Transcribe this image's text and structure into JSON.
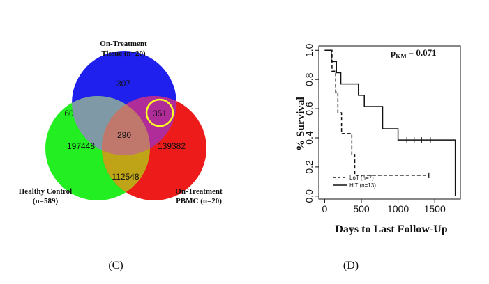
{
  "chart_data": [
    {
      "type": "venn",
      "panel_label": "(C)",
      "sets": [
        {
          "name_line1": "On-Treatment",
          "name_line2": "Tissue (n=20)",
          "color": "#2020ee"
        },
        {
          "name_line1": "Healthy Control",
          "name_line2": "(n=589)",
          "color": "#22ee22"
        },
        {
          "name_line1": "On-Treatment",
          "name_line2": "PBMC (n=20)",
          "color": "#ee1b1b"
        }
      ],
      "regions": {
        "tissue_only": "307",
        "tissue_healthy": "60",
        "tissue_pbmc": "351",
        "all_three": "290",
        "healthy_only": "197448",
        "pbmc_only": "139382",
        "healthy_pbmc": "112548"
      },
      "highlight_region": "tissue_pbmc",
      "highlight_color": "#ffff22"
    },
    {
      "type": "line",
      "subtype": "kaplan-meier step",
      "panel_label": "(D)",
      "xlabel": "Days to Last Follow-Up",
      "ylabel": "% Survival",
      "annotation_main": "p",
      "annotation_sub": "KM",
      "annotation_value": "= 0.071",
      "xlim": [
        -80,
        1850
      ],
      "ylim": [
        -0.02,
        1.03
      ],
      "xticks": [
        0,
        500,
        1000,
        1500
      ],
      "yticks": [
        "0.0",
        "0.2",
        "0.4",
        "0.6",
        "0.8",
        "1.0"
      ],
      "ytick_values": [
        0,
        0.2,
        0.4,
        0.6,
        0.8,
        1.0
      ],
      "series": [
        {
          "name": "LoT (n=7)",
          "style": "dashed",
          "steps": [
            [
              0,
              1.0
            ],
            [
              100,
              0.857
            ],
            [
              150,
              0.714
            ],
            [
              180,
              0.571
            ],
            [
              230,
              0.429
            ],
            [
              370,
              0.286
            ],
            [
              410,
              0.143
            ],
            [
              1420,
              0.143
            ]
          ],
          "censored": [
            [
              1420,
              0.143
            ]
          ]
        },
        {
          "name": "HiT (n=13)",
          "style": "solid",
          "steps": [
            [
              0,
              1.0
            ],
            [
              90,
              0.923
            ],
            [
              160,
              0.846
            ],
            [
              220,
              0.769
            ],
            [
              460,
              0.692
            ],
            [
              540,
              0.615
            ],
            [
              790,
              0.462
            ],
            [
              1000,
              0.385
            ],
            [
              1780,
              0.385
            ],
            [
              1780,
              0.0
            ]
          ],
          "censored": [
            [
              1120,
              0.385
            ],
            [
              1220,
              0.385
            ],
            [
              1320,
              0.385
            ],
            [
              1440,
              0.385
            ]
          ]
        }
      ]
    }
  ]
}
